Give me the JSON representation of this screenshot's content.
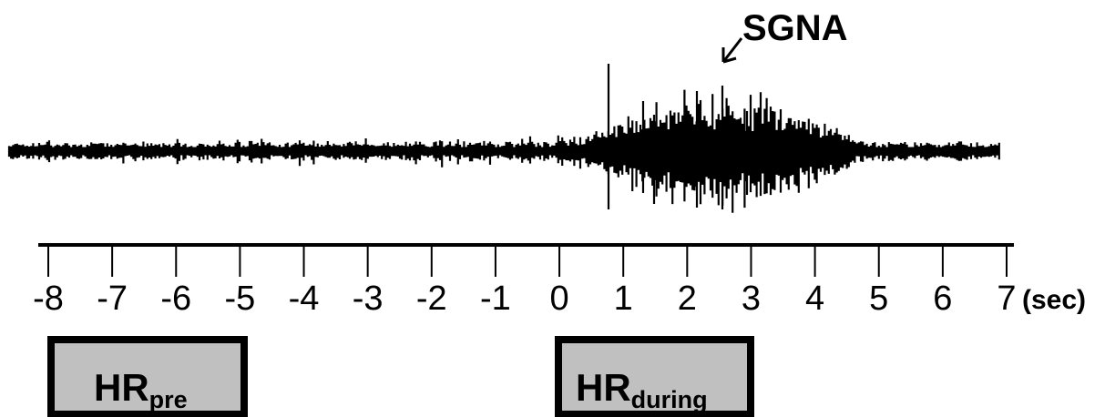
{
  "annotation": {
    "label": "SGNA"
  },
  "axis": {
    "ticks": [
      "-8",
      "-7",
      "-6",
      "-5",
      "-4",
      "-3",
      "-2",
      "-1",
      "0",
      "1",
      "2",
      "3",
      "4",
      "5",
      "6",
      "7"
    ],
    "unit": "(sec)"
  },
  "windows": {
    "pre": {
      "main": "HR",
      "sub": "pre",
      "fill": "#c0c0c0"
    },
    "during": {
      "main": "HR",
      "sub": "during",
      "fill": "#c0c0c0"
    }
  },
  "colors": {
    "trace": "#000000",
    "box_border": "#000000",
    "box_fill": "#c0c0c0"
  }
}
